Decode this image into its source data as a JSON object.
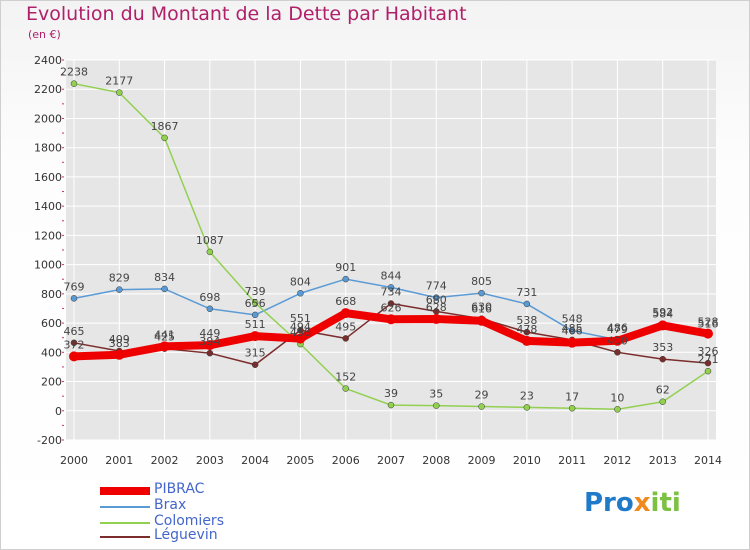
{
  "header": {
    "title": "Evolution du Montant de la Dette par Habitant",
    "subtitle": "(en €)"
  },
  "logo": {
    "text_part1": "Pro",
    "text_part2": "x",
    "text_part3": "iti"
  },
  "colors": {
    "title": "#b0206a",
    "pibrac": "#ee0000",
    "brax": "#5b9bd5",
    "colomiers": "#92d050",
    "leguevin": "#7b2c2c",
    "grid": "#ffffff",
    "axis_text": "#333333"
  },
  "chart_data": {
    "type": "line",
    "x": [
      2000,
      2001,
      2002,
      2003,
      2004,
      2005,
      2006,
      2007,
      2008,
      2009,
      2010,
      2011,
      2012,
      2013,
      2014
    ],
    "ylim": [
      -200,
      2400
    ],
    "yticks": [
      -200,
      0,
      200,
      400,
      600,
      800,
      1000,
      1200,
      1400,
      1600,
      1800,
      2000,
      2200,
      2400
    ],
    "xlabel": "",
    "ylabel": "",
    "grid": true,
    "legend_position": "bottom-left",
    "series": [
      {
        "name": "PIBRAC",
        "color": "#ee0000",
        "values": [
          372,
          383,
          441,
          449,
          511,
          494,
          668,
          626,
          628,
          616,
          478,
          466,
          479,
          584,
          528
        ]
      },
      {
        "name": "Brax",
        "color": "#5b9bd5",
        "values": [
          769,
          829,
          834,
          698,
          656,
          804,
          901,
          844,
          774,
          805,
          731,
          548,
          486,
          592,
          516
        ]
      },
      {
        "name": "Colomiers",
        "color": "#92d050",
        "values": [
          2238,
          2177,
          1867,
          1087,
          739,
          456,
          152,
          39,
          35,
          29,
          23,
          17,
          10,
          62,
          271
        ]
      },
      {
        "name": "Léguevin",
        "color": "#7b2c2c",
        "values": [
          465,
          409,
          425,
          394,
          315,
          551,
          495,
          734,
          680,
          630,
          538,
          485,
          400,
          353,
          326
        ]
      }
    ],
    "data_labels": [
      {
        "series": "PIBRAC",
        "values": [
          372,
          383,
          441,
          449,
          511,
          494,
          668,
          626,
          628,
          616,
          478,
          466,
          479,
          584,
          528
        ]
      },
      {
        "series": "Brax",
        "values": [
          769,
          829,
          834,
          698,
          656,
          804,
          901,
          844,
          774,
          805,
          731,
          548,
          486,
          592,
          516
        ]
      },
      {
        "series": "Colomiers",
        "values": [
          2238,
          2177,
          1867,
          1087,
          739,
          456,
          152,
          39,
          35,
          29,
          23,
          17,
          10,
          62,
          271
        ]
      },
      {
        "series": "Léguevin",
        "values": [
          465,
          409,
          425,
          394,
          315,
          551,
          495,
          734,
          680,
          630,
          538,
          485,
          400,
          353,
          326
        ]
      }
    ]
  },
  "legend": [
    {
      "label": "PIBRAC",
      "color": "#ee0000",
      "thickness": 8
    },
    {
      "label": "Brax",
      "color": "#5b9bd5",
      "thickness": 2
    },
    {
      "label": "Colomiers",
      "color": "#92d050",
      "thickness": 2
    },
    {
      "label": "Léguevin",
      "color": "#7b2c2c",
      "thickness": 2
    }
  ]
}
